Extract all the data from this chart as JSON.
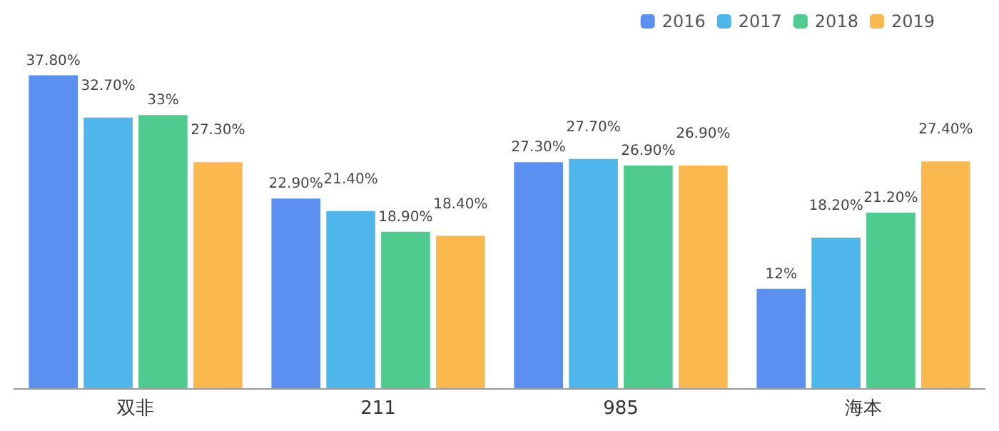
{
  "chart_data": {
    "type": "bar",
    "categories": [
      "双非",
      "211",
      "985",
      "海本"
    ],
    "series": [
      {
        "name": "2016",
        "color": "#5b8ff0",
        "values": [
          37.8,
          22.9,
          27.3,
          12
        ],
        "value_labels": [
          "37.80%",
          "22.90%",
          "27.30%",
          "12%"
        ]
      },
      {
        "name": "2017",
        "color": "#4fb6ec",
        "values": [
          32.7,
          21.4,
          27.7,
          18.2
        ],
        "value_labels": [
          "32.70%",
          "21.40%",
          "27.70%",
          "18.20%"
        ]
      },
      {
        "name": "2018",
        "color": "#4fcb8f",
        "values": [
          33,
          18.9,
          26.9,
          21.2
        ],
        "value_labels": [
          "33%",
          "18.90%",
          "26.90%",
          "21.20%"
        ]
      },
      {
        "name": "2019",
        "color": "#fbb84e",
        "values": [
          27.3,
          18.4,
          26.9,
          27.4
        ],
        "value_labels": [
          "27.30%",
          "18.40%",
          "26.90%",
          "27.40%"
        ]
      }
    ],
    "legend": "top right"
  }
}
